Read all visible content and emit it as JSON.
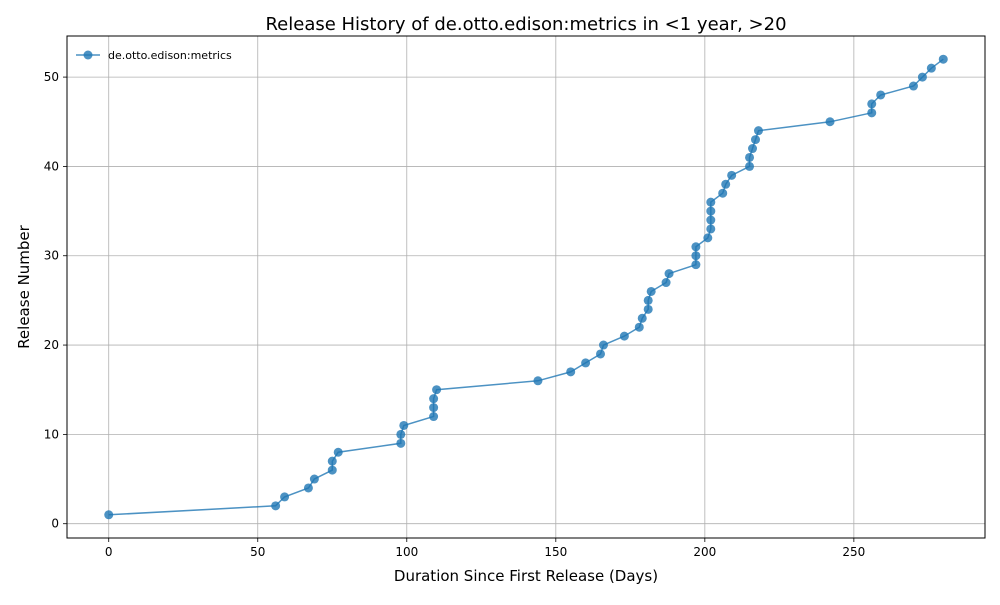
{
  "chart_data": {
    "type": "line",
    "title": "Release History of de.otto.edison:metrics in <1 year, >20",
    "xlabel": "Duration Since First Release (Days)",
    "ylabel": "Release Number",
    "xlim": [
      -14,
      294
    ],
    "ylim": [
      -1.6,
      54.6
    ],
    "xticks": [
      0,
      50,
      100,
      150,
      200,
      250
    ],
    "yticks": [
      0,
      10,
      20,
      30,
      40,
      50
    ],
    "grid": true,
    "legend_position": "top-left",
    "series": [
      {
        "name": "de.otto.edison:metrics",
        "color": "#1f77b4",
        "marker": "circle",
        "points": [
          [
            0,
            1
          ],
          [
            56,
            2
          ],
          [
            59,
            3
          ],
          [
            67,
            4
          ],
          [
            69,
            5
          ],
          [
            75,
            6
          ],
          [
            75,
            7
          ],
          [
            77,
            8
          ],
          [
            98,
            9
          ],
          [
            98,
            10
          ],
          [
            99,
            11
          ],
          [
            109,
            12
          ],
          [
            109,
            13
          ],
          [
            109,
            14
          ],
          [
            110,
            15
          ],
          [
            144,
            16
          ],
          [
            155,
            17
          ],
          [
            160,
            18
          ],
          [
            165,
            19
          ],
          [
            166,
            20
          ],
          [
            173,
            21
          ],
          [
            178,
            22
          ],
          [
            179,
            23
          ],
          [
            181,
            24
          ],
          [
            181,
            25
          ],
          [
            182,
            26
          ],
          [
            187,
            27
          ],
          [
            188,
            28
          ],
          [
            197,
            29
          ],
          [
            197,
            30
          ],
          [
            197,
            31
          ],
          [
            201,
            32
          ],
          [
            202,
            33
          ],
          [
            202,
            34
          ],
          [
            202,
            35
          ],
          [
            202,
            36
          ],
          [
            206,
            37
          ],
          [
            207,
            38
          ],
          [
            209,
            39
          ],
          [
            215,
            40
          ],
          [
            215,
            41
          ],
          [
            216,
            42
          ],
          [
            217,
            43
          ],
          [
            218,
            44
          ],
          [
            242,
            45
          ],
          [
            256,
            46
          ],
          [
            256,
            47
          ],
          [
            259,
            48
          ],
          [
            270,
            49
          ],
          [
            273,
            50
          ],
          [
            276,
            51
          ],
          [
            280,
            52
          ]
        ]
      }
    ]
  }
}
